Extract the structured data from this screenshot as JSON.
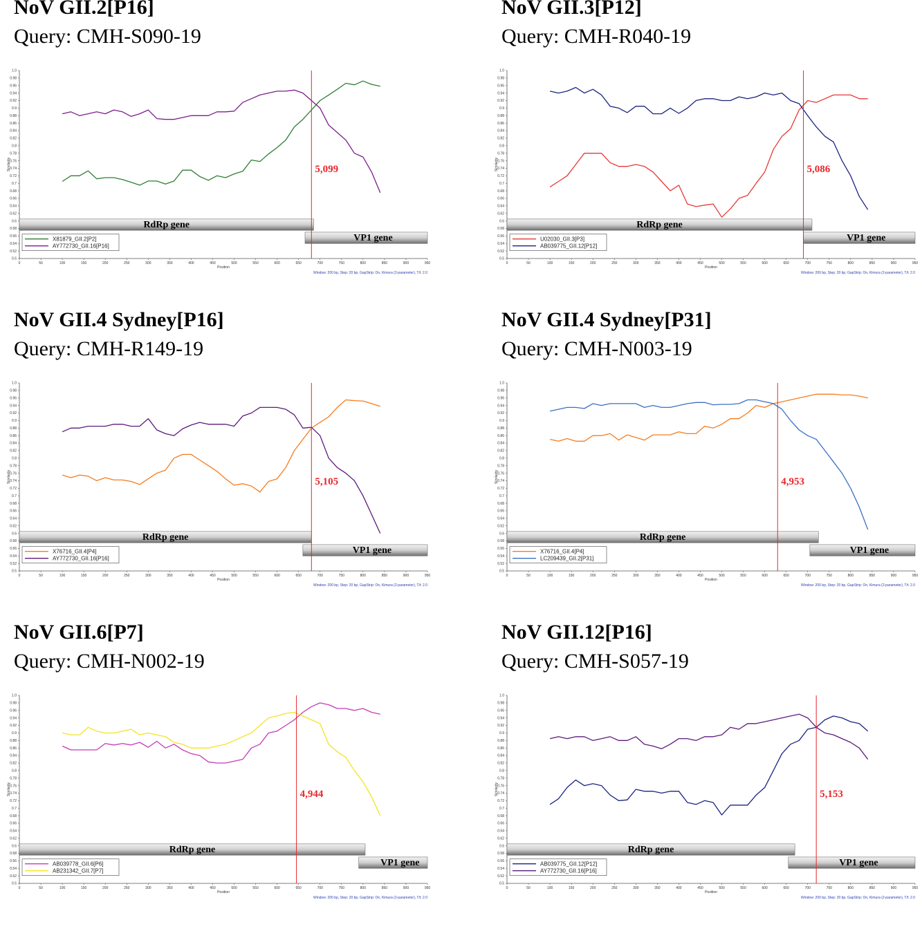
{
  "footnote": "Window: 200 bp, Step: 20 bp, GapStrip: On, Kimura (2-parameter), T/t: 2.0",
  "x_axis_label": "Position",
  "y_axis_label": "Similarity",
  "x_ticks": [
    "0",
    "50",
    "100",
    "150",
    "200",
    "250",
    "300",
    "350",
    "400",
    "450",
    "500",
    "550",
    "600",
    "650",
    "700",
    "750",
    "800",
    "850",
    "900",
    "950"
  ],
  "y_ticks": [
    "0.5",
    "0.52",
    "0.54",
    "0.56",
    "0.58",
    "0.6",
    "0.62",
    "0.64",
    "0.66",
    "0.68",
    "0.7",
    "0.72",
    "0.74",
    "0.76",
    "0.78",
    "0.8",
    "0.82",
    "0.84",
    "0.86",
    "0.88",
    "0.9",
    "0.92",
    "0.94",
    "0.96",
    "0.98",
    "1.0"
  ],
  "rdrp_label": "RdRp gene",
  "vp1_label": "VP1 gene",
  "panels": [
    {
      "title": "NoV GII.2[P16]",
      "query": "Query: CMH-S090-19",
      "breakpoint_label": "5,099"
    },
    {
      "title": "NoV GII.3[P12]",
      "query": "Query: CMH-R040-19",
      "breakpoint_label": "5,086"
    },
    {
      "title": "NoV GII.4 Sydney[P16]",
      "query": "Query: CMH-R149-19",
      "breakpoint_label": "5,105"
    },
    {
      "title": "NoV GII.4 Sydney[P31]",
      "query": "Query: CMH-N003-19",
      "breakpoint_label": "4,953"
    },
    {
      "title": "NoV GII.6[P7]",
      "query": "Query: CMH-N002-19",
      "breakpoint_label": "4,944"
    },
    {
      "title": "NoV GII.12[P16]",
      "query": "Query: CMH-S057-19",
      "breakpoint_label": "5,153"
    }
  ],
  "chart_data": [
    {
      "type": "line",
      "title": "NoV GII.2[P16]",
      "subtitle": "Query: CMH-S090-19",
      "xlabel": "Position",
      "ylabel": "Similarity",
      "xlim": [
        0,
        950
      ],
      "ylim": [
        0.5,
        1.0
      ],
      "breakpoint_x": 680,
      "breakpoint_label": "5,099",
      "rdrp": [
        0,
        685
      ],
      "vp1": [
        665,
        950
      ],
      "x": [
        100,
        120,
        140,
        160,
        180,
        200,
        220,
        240,
        260,
        280,
        300,
        320,
        340,
        360,
        380,
        400,
        420,
        440,
        460,
        480,
        500,
        520,
        540,
        560,
        580,
        600,
        620,
        640,
        660,
        680,
        700,
        720,
        740,
        760,
        780,
        800,
        820,
        840
      ],
      "series": [
        {
          "name": "X81879_GII.2[P2]",
          "color": "#2e7d32",
          "values": [
            0.705,
            0.72,
            0.72,
            0.733,
            0.712,
            0.715,
            0.715,
            0.71,
            0.703,
            0.695,
            0.706,
            0.706,
            0.698,
            0.706,
            0.735,
            0.735,
            0.718,
            0.708,
            0.72,
            0.715,
            0.725,
            0.732,
            0.762,
            0.758,
            0.778,
            0.795,
            0.815,
            0.85,
            0.87,
            0.895,
            0.92,
            0.935,
            0.95,
            0.966,
            0.962,
            0.972,
            0.963,
            0.958
          ]
        },
        {
          "name": "AY772730_GII.16[P16]",
          "color": "#7b1e8c",
          "values": [
            0.885,
            0.89,
            0.88,
            0.885,
            0.89,
            0.885,
            0.895,
            0.89,
            0.878,
            0.885,
            0.895,
            0.872,
            0.87,
            0.87,
            0.875,
            0.88,
            0.88,
            0.88,
            0.89,
            0.89,
            0.892,
            0.915,
            0.925,
            0.935,
            0.94,
            0.945,
            0.945,
            0.948,
            0.94,
            0.92,
            0.9,
            0.855,
            0.835,
            0.815,
            0.78,
            0.77,
            0.73,
            0.675
          ]
        }
      ]
    },
    {
      "type": "line",
      "title": "NoV GII.3[P12]",
      "subtitle": "Query: CMH-R040-19",
      "xlabel": "Position",
      "ylabel": "Similarity",
      "xlim": [
        0,
        950
      ],
      "ylim": [
        0.5,
        1.0
      ],
      "breakpoint_x": 690,
      "breakpoint_label": "5,086",
      "rdrp": [
        0,
        710
      ],
      "vp1": [
        690,
        950
      ],
      "x": [
        100,
        120,
        140,
        160,
        180,
        200,
        220,
        240,
        260,
        280,
        300,
        320,
        340,
        360,
        380,
        400,
        420,
        440,
        460,
        480,
        500,
        520,
        540,
        560,
        580,
        600,
        620,
        640,
        660,
        680,
        700,
        720,
        740,
        760,
        780,
        800,
        820,
        840
      ],
      "series": [
        {
          "name": "U02030_GII.3[P3]",
          "color": "#e53935",
          "values": [
            0.69,
            0.705,
            0.72,
            0.75,
            0.78,
            0.78,
            0.78,
            0.755,
            0.745,
            0.745,
            0.75,
            0.745,
            0.73,
            0.705,
            0.68,
            0.695,
            0.645,
            0.638,
            0.642,
            0.645,
            0.61,
            0.632,
            0.66,
            0.668,
            0.7,
            0.73,
            0.79,
            0.825,
            0.845,
            0.895,
            0.92,
            0.915,
            0.925,
            0.935,
            0.935,
            0.935,
            0.925,
            0.925
          ]
        },
        {
          "name": "AB039775_GII.12[P12]",
          "color": "#1a237e",
          "values": [
            0.945,
            0.94,
            0.945,
            0.955,
            0.94,
            0.95,
            0.935,
            0.905,
            0.9,
            0.888,
            0.905,
            0.905,
            0.885,
            0.885,
            0.9,
            0.886,
            0.9,
            0.92,
            0.925,
            0.925,
            0.92,
            0.92,
            0.93,
            0.925,
            0.93,
            0.94,
            0.935,
            0.94,
            0.92,
            0.912,
            0.88,
            0.85,
            0.825,
            0.81,
            0.76,
            0.72,
            0.665,
            0.63
          ]
        }
      ]
    },
    {
      "type": "line",
      "title": "NoV GII.4 Sydney[P16]",
      "subtitle": "Query: CMH-R149-19",
      "xlabel": "Position",
      "ylabel": "Similarity",
      "xlim": [
        0,
        950
      ],
      "ylim": [
        0.5,
        1.0
      ],
      "breakpoint_x": 680,
      "breakpoint_label": "5,105",
      "rdrp": [
        0,
        680
      ],
      "vp1": [
        660,
        950
      ],
      "x": [
        100,
        120,
        140,
        160,
        180,
        200,
        220,
        240,
        260,
        280,
        300,
        320,
        340,
        360,
        380,
        400,
        420,
        440,
        460,
        480,
        500,
        520,
        540,
        560,
        580,
        600,
        620,
        640,
        660,
        680,
        700,
        720,
        740,
        760,
        780,
        800,
        820,
        840
      ],
      "series": [
        {
          "name": "X76716_GII.4[P4]",
          "color": "#f57c1f",
          "values": [
            0.755,
            0.748,
            0.755,
            0.752,
            0.74,
            0.748,
            0.742,
            0.742,
            0.738,
            0.73,
            0.745,
            0.76,
            0.768,
            0.8,
            0.81,
            0.81,
            0.795,
            0.78,
            0.765,
            0.745,
            0.728,
            0.732,
            0.726,
            0.71,
            0.738,
            0.745,
            0.775,
            0.82,
            0.85,
            0.88,
            0.895,
            0.91,
            0.935,
            0.955,
            0.953,
            0.952,
            0.945,
            0.938
          ]
        },
        {
          "name": "AY772730_GII.16[P16]",
          "color": "#5c1a7a",
          "values": [
            0.87,
            0.88,
            0.88,
            0.885,
            0.885,
            0.885,
            0.89,
            0.89,
            0.885,
            0.885,
            0.905,
            0.875,
            0.865,
            0.86,
            0.878,
            0.888,
            0.895,
            0.89,
            0.89,
            0.89,
            0.885,
            0.912,
            0.92,
            0.935,
            0.935,
            0.935,
            0.93,
            0.915,
            0.88,
            0.882,
            0.86,
            0.8,
            0.775,
            0.76,
            0.74,
            0.7,
            0.65,
            0.6
          ]
        }
      ]
    },
    {
      "type": "line",
      "title": "NoV GII.4 Sydney[P31]",
      "subtitle": "Query: CMH-N003-19",
      "xlabel": "Position",
      "ylabel": "Similarity",
      "xlim": [
        0,
        950
      ],
      "ylim": [
        0.5,
        1.0
      ],
      "breakpoint_x": 630,
      "breakpoint_label": "4,953",
      "rdrp": [
        0,
        725
      ],
      "vp1": [
        705,
        950
      ],
      "x": [
        100,
        120,
        140,
        160,
        180,
        200,
        220,
        240,
        260,
        280,
        300,
        320,
        340,
        360,
        380,
        400,
        420,
        440,
        460,
        480,
        500,
        520,
        540,
        560,
        580,
        600,
        620,
        640,
        660,
        680,
        700,
        720,
        740,
        760,
        780,
        800,
        820,
        840
      ],
      "series": [
        {
          "name": "X76716_GII.4[P4]",
          "color": "#f57c1f",
          "values": [
            0.85,
            0.845,
            0.852,
            0.845,
            0.845,
            0.86,
            0.86,
            0.865,
            0.848,
            0.862,
            0.855,
            0.848,
            0.862,
            0.862,
            0.862,
            0.87,
            0.865,
            0.865,
            0.885,
            0.88,
            0.89,
            0.905,
            0.905,
            0.92,
            0.94,
            0.935,
            0.945,
            0.95,
            0.955,
            0.96,
            0.965,
            0.97,
            0.97,
            0.97,
            0.968,
            0.968,
            0.965,
            0.96
          ]
        },
        {
          "name": "LC209439_GII.2[P31]",
          "color": "#3a6fc4",
          "values": [
            0.925,
            0.93,
            0.935,
            0.935,
            0.932,
            0.945,
            0.94,
            0.945,
            0.945,
            0.945,
            0.945,
            0.935,
            0.94,
            0.935,
            0.935,
            0.94,
            0.945,
            0.948,
            0.948,
            0.942,
            0.943,
            0.943,
            0.945,
            0.955,
            0.955,
            0.95,
            0.945,
            0.93,
            0.9,
            0.875,
            0.86,
            0.85,
            0.82,
            0.79,
            0.76,
            0.72,
            0.67,
            0.61
          ]
        }
      ]
    },
    {
      "type": "line",
      "title": "NoV GII.6[P7]",
      "subtitle": "Query: CMH-N002-19",
      "xlabel": "Position",
      "ylabel": "Similarity",
      "xlim": [
        0,
        950
      ],
      "ylim": [
        0.5,
        1.0
      ],
      "breakpoint_x": 645,
      "breakpoint_label": "4,944",
      "rdrp": [
        0,
        805
      ],
      "vp1": [
        790,
        950
      ],
      "x": [
        100,
        120,
        140,
        160,
        180,
        200,
        220,
        240,
        260,
        280,
        300,
        320,
        340,
        360,
        380,
        400,
        420,
        440,
        460,
        480,
        500,
        520,
        540,
        560,
        580,
        600,
        620,
        640,
        660,
        680,
        700,
        720,
        740,
        760,
        780,
        800,
        820,
        840
      ],
      "series": [
        {
          "name": "AB039778_GII.6[P6]",
          "color": "#c53ab7",
          "values": [
            0.865,
            0.855,
            0.855,
            0.855,
            0.855,
            0.872,
            0.868,
            0.872,
            0.868,
            0.875,
            0.862,
            0.878,
            0.86,
            0.87,
            0.855,
            0.845,
            0.84,
            0.823,
            0.82,
            0.82,
            0.825,
            0.83,
            0.86,
            0.87,
            0.9,
            0.905,
            0.92,
            0.935,
            0.955,
            0.97,
            0.98,
            0.975,
            0.965,
            0.965,
            0.96,
            0.965,
            0.955,
            0.95
          ]
        },
        {
          "name": "AB231342_GII.7[P7]",
          "color": "#f4e320",
          "values": [
            0.9,
            0.895,
            0.895,
            0.915,
            0.905,
            0.9,
            0.9,
            0.905,
            0.91,
            0.895,
            0.9,
            0.895,
            0.89,
            0.875,
            0.87,
            0.86,
            0.86,
            0.86,
            0.865,
            0.87,
            0.88,
            0.89,
            0.9,
            0.92,
            0.94,
            0.945,
            0.952,
            0.955,
            0.945,
            0.935,
            0.925,
            0.87,
            0.85,
            0.835,
            0.8,
            0.77,
            0.73,
            0.68
          ]
        }
      ]
    },
    {
      "type": "line",
      "title": "NoV GII.12[P16]",
      "subtitle": "Query: CMH-S057-19",
      "xlabel": "Position",
      "ylabel": "Similarity",
      "xlim": [
        0,
        950
      ],
      "ylim": [
        0.5,
        1.0
      ],
      "breakpoint_x": 720,
      "breakpoint_label": "5,153",
      "rdrp": [
        0,
        670
      ],
      "vp1": [
        655,
        950
      ],
      "x": [
        100,
        120,
        140,
        160,
        180,
        200,
        220,
        240,
        260,
        280,
        300,
        320,
        340,
        360,
        380,
        400,
        420,
        440,
        460,
        480,
        500,
        520,
        540,
        560,
        580,
        600,
        620,
        640,
        660,
        680,
        700,
        720,
        740,
        760,
        780,
        800,
        820,
        840
      ],
      "series": [
        {
          "name": "AB039775_GII.12[P12]",
          "color": "#1a237e",
          "values": [
            0.71,
            0.725,
            0.755,
            0.775,
            0.76,
            0.765,
            0.76,
            0.735,
            0.72,
            0.722,
            0.75,
            0.745,
            0.745,
            0.74,
            0.745,
            0.745,
            0.715,
            0.71,
            0.72,
            0.715,
            0.682,
            0.708,
            0.708,
            0.708,
            0.735,
            0.755,
            0.8,
            0.845,
            0.87,
            0.88,
            0.91,
            0.915,
            0.935,
            0.945,
            0.94,
            0.93,
            0.925,
            0.905
          ]
        },
        {
          "name": "AY772730_GII.16[P16]",
          "color": "#5c1a7a",
          "values": [
            0.885,
            0.89,
            0.885,
            0.89,
            0.89,
            0.88,
            0.885,
            0.89,
            0.88,
            0.88,
            0.89,
            0.87,
            0.865,
            0.858,
            0.87,
            0.885,
            0.885,
            0.88,
            0.89,
            0.89,
            0.895,
            0.915,
            0.91,
            0.925,
            0.925,
            0.93,
            0.935,
            0.94,
            0.945,
            0.95,
            0.94,
            0.915,
            0.9,
            0.895,
            0.885,
            0.875,
            0.86,
            0.83
          ]
        }
      ]
    }
  ]
}
